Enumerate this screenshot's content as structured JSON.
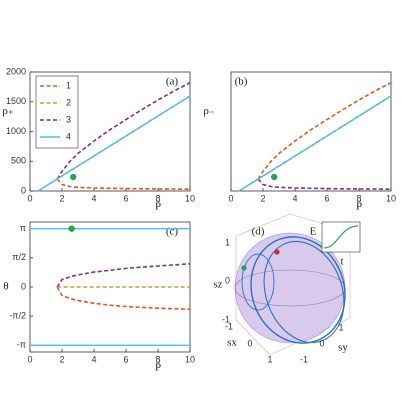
{
  "chart_data": [
    {
      "type": "line",
      "label": "(a)",
      "ylabel": "ρ₊",
      "xlabel": "P̄",
      "x": [
        0,
        0.5,
        1,
        1.5,
        1.7,
        2,
        2.5,
        3,
        4,
        5,
        6,
        7,
        8,
        9,
        10
      ],
      "xlim": [
        0,
        10
      ],
      "ylim": [
        0,
        2000
      ],
      "xticks": [
        0,
        2,
        4,
        6,
        8,
        10
      ],
      "yticks": [
        0,
        500,
        1000,
        1500,
        2000
      ],
      "legend": "upper left",
      "series": [
        {
          "name": "1",
          "color": "#e8541c",
          "dash": true,
          "values": [
            null,
            null,
            null,
            null,
            200,
            110,
            75,
            62,
            50,
            45,
            40,
            37,
            34,
            32,
            30
          ]
        },
        {
          "name": "2",
          "color": "#d99a2b",
          "dash": true,
          "values": [
            null,
            0,
            84,
            168,
            202,
            252,
            336,
            420,
            588,
            756,
            924,
            1092,
            1260,
            1428,
            1596
          ]
        },
        {
          "name": "3",
          "color": "#7e2f8e",
          "dash": true,
          "values": [
            null,
            null,
            null,
            null,
            200,
            330,
            500,
            630,
            840,
            1030,
            1200,
            1370,
            1530,
            1680,
            1820
          ]
        },
        {
          "name": "4",
          "color": "#4dbeee",
          "dash": false,
          "values": [
            null,
            0,
            84,
            168,
            202,
            252,
            336,
            420,
            588,
            756,
            924,
            1092,
            1260,
            1428,
            1596
          ]
        }
      ],
      "points": [
        {
          "x": 2.7,
          "y": 235,
          "color": "#22a84a"
        }
      ]
    },
    {
      "type": "line",
      "label": "(b)",
      "ylabel": "ρ₋",
      "xlabel": "P̄",
      "x": [
        0,
        0.5,
        1,
        1.5,
        1.7,
        2,
        2.5,
        3,
        4,
        5,
        6,
        7,
        8,
        9,
        10
      ],
      "xlim": [
        0,
        10
      ],
      "ylim": [
        0,
        2000
      ],
      "xticks": [
        0,
        2,
        4,
        6,
        8,
        10
      ],
      "series": [
        {
          "color": "#e8541c",
          "dash": true,
          "values": [
            null,
            null,
            null,
            null,
            200,
            330,
            500,
            630,
            840,
            1030,
            1200,
            1370,
            1530,
            1680,
            1820
          ]
        },
        {
          "color": "#d99a2b",
          "dash": true,
          "values": [
            null,
            0,
            84,
            168,
            202,
            252,
            336,
            420,
            588,
            756,
            924,
            1092,
            1260,
            1428,
            1596
          ]
        },
        {
          "color": "#7e2f8e",
          "dash": true,
          "values": [
            null,
            null,
            null,
            null,
            200,
            110,
            75,
            62,
            50,
            45,
            40,
            37,
            34,
            32,
            30
          ]
        },
        {
          "color": "#4dbeee",
          "dash": false,
          "values": [
            null,
            0,
            84,
            168,
            202,
            252,
            336,
            420,
            588,
            756,
            924,
            1092,
            1260,
            1428,
            1596
          ]
        }
      ],
      "points": [
        {
          "x": 2.7,
          "y": 235,
          "color": "#22a84a"
        }
      ]
    },
    {
      "type": "line",
      "label": "(c)",
      "ylabel": "θ",
      "xlabel": "P̄",
      "x": [
        0,
        0.5,
        1,
        1.5,
        1.7,
        2,
        2.5,
        3,
        4,
        5,
        6,
        7,
        8,
        9,
        10
      ],
      "xlim": [
        0,
        10
      ],
      "ylim": [
        -3.5,
        3.5
      ],
      "xticks": [
        0,
        2,
        4,
        6,
        8,
        10
      ],
      "yticks": [
        {
          "value": -3.1416,
          "label": "-π"
        },
        {
          "value": -1.5708,
          "label": "-π/2"
        },
        0,
        {
          "value": 1.5708,
          "label": "π/2"
        },
        {
          "value": 3.1416,
          "label": "π"
        }
      ],
      "series": [
        {
          "color": "#e8541c",
          "dash": true,
          "values": [
            null,
            null,
            null,
            null,
            0,
            -0.45,
            -0.62,
            -0.73,
            -0.88,
            -0.98,
            -1.05,
            -1.1,
            -1.14,
            -1.17,
            -1.2
          ]
        },
        {
          "color": "#d99a2b",
          "dash": true,
          "values": [
            null,
            null,
            null,
            null,
            0,
            0,
            0,
            0,
            0,
            0,
            0,
            0,
            0,
            0,
            0
          ]
        },
        {
          "color": "#7e2f8e",
          "dash": true,
          "values": [
            null,
            null,
            null,
            null,
            0,
            0.4,
            0.55,
            0.65,
            0.8,
            0.9,
            1.0,
            1.07,
            1.13,
            1.19,
            1.25
          ]
        },
        {
          "color": "#4dbeee",
          "dash": false,
          "values": [
            3.1416,
            3.1416,
            3.1416,
            3.1416,
            3.1416,
            3.1416,
            3.1416,
            3.1416,
            3.1416,
            3.1416,
            3.1416,
            3.1416,
            3.1416,
            3.1416,
            3.1416
          ]
        },
        {
          "color": "#4dbeee",
          "dash": false,
          "values": [
            -3.1416,
            -3.1416,
            -3.1416,
            -3.1416,
            -3.1416,
            -3.1416,
            -3.1416,
            -3.1416,
            -3.1416,
            -3.1416,
            -3.1416,
            -3.1416,
            -3.1416,
            -3.1416,
            -3.1416
          ]
        }
      ],
      "points": [
        {
          "x": 2.6,
          "y": 3.1416,
          "color": "#22a84a"
        }
      ]
    },
    {
      "type": "sphere",
      "label": "(d)",
      "xlabel": "sx",
      "ylabel": "sy",
      "zlabel": "sz",
      "xticks": [
        -1,
        0,
        1
      ],
      "yticks": [
        -1,
        0,
        1
      ],
      "zticks": [
        -1,
        0,
        1
      ],
      "inset": {
        "ylabel": "E",
        "xlabel": "t"
      }
    }
  ]
}
